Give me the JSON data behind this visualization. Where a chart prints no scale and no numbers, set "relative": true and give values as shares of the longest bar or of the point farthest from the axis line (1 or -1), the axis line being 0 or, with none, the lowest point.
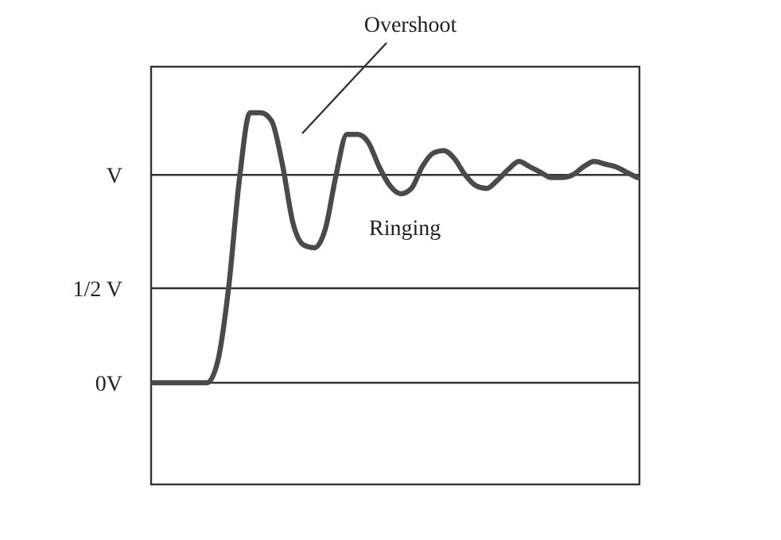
{
  "chart_data": {
    "type": "line",
    "relative": true,
    "categories": [
      null,
      null,
      null,
      null,
      null,
      null,
      null,
      null,
      null,
      null,
      null,
      null,
      null,
      null,
      null,
      null,
      null,
      null,
      null,
      null,
      null,
      null,
      null,
      null,
      null,
      null,
      null,
      null,
      null,
      null,
      null,
      null,
      null,
      null,
      null,
      null,
      null,
      null,
      null,
      null,
      null,
      null,
      null,
      null,
      null,
      null
    ],
    "series": [
      {
        "color": "#4a4a4a",
        "values": [
          0,
          0,
          0,
          0,
          0,
          0,
          0.08,
          0.35,
          0.75,
          1,
          1,
          0.97,
          0.81,
          0.59,
          0.51,
          0.5,
          0.57,
          0.77,
          0.92,
          0.92,
          0.89,
          0.8,
          0.73,
          0.7,
          0.72,
          0.8,
          0.85,
          0.86,
          0.83,
          0.77,
          0.73,
          0.72,
          0.75,
          0.79,
          0.82,
          0.8,
          0.78,
          0.76,
          0.76,
          0.77,
          0.8,
          0.82,
          0.81,
          0.8,
          0.78,
          0.76
        ]
      }
    ],
    "ref_lines": [
      {
        "axis": "y",
        "value": 0.77,
        "label": "V"
      },
      {
        "axis": "y",
        "value": 0.35,
        "label": "1/2 V"
      },
      {
        "axis": "y",
        "value": 0,
        "label": "0V"
      }
    ],
    "marker": "none",
    "line_style": "solid",
    "annotations": [
      "Overshoot",
      "Ringing"
    ]
  }
}
